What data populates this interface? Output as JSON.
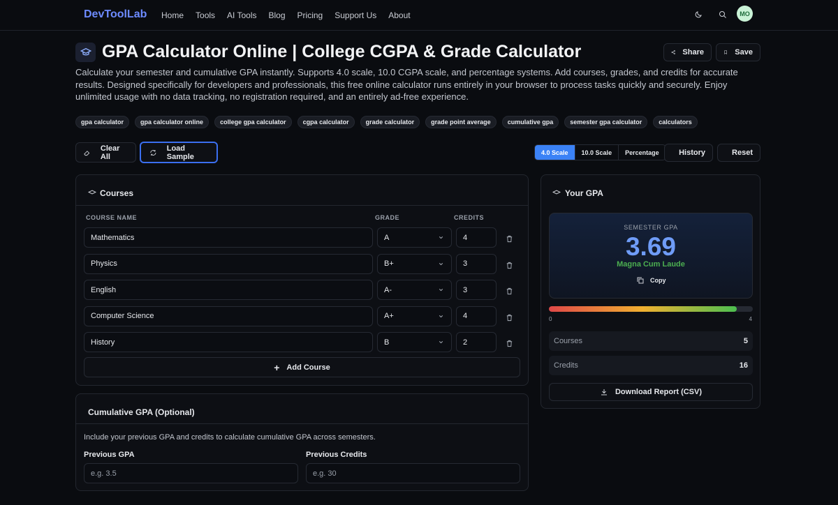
{
  "nav": {
    "brand": "DevToolLab",
    "links": [
      "Home",
      "Tools",
      "AI Tools",
      "Blog",
      "Pricing",
      "Support Us",
      "About"
    ],
    "avatar": "MO"
  },
  "header": {
    "title": "GPA Calculator Online | College CGPA & Grade Calculator",
    "description": "Calculate your semester and cumulative GPA instantly. Supports 4.0 scale, 10.0 CGPA scale, and percentage systems. Add courses, grades, and credits for accurate results. Designed specifically for developers and professionals, this free online calculator runs entirely in your browser to process tasks quickly and securely. Enjoy unlimited usage with no data tracking, no registration required, and an entirely ad-free experience.",
    "actions": [
      "Share",
      "Save"
    ]
  },
  "tags": [
    "gpa calculator",
    "gpa calculator online",
    "college gpa calculator",
    "cgpa calculator",
    "grade calculator",
    "grade point average",
    "cumulative gpa",
    "semester gpa calculator",
    "calculators"
  ],
  "toolbar": {
    "left": [
      "Clear All",
      "Load Sample"
    ],
    "scales": [
      "4.0 Scale",
      "10.0 Scale",
      "Percentage"
    ],
    "right": [
      "History",
      "Reset"
    ]
  },
  "courses": {
    "title": "Courses",
    "columns": [
      "COURSE NAME",
      "GRADE",
      "CREDITS"
    ],
    "rows": [
      {
        "name": "Mathematics",
        "grade": "A",
        "credits": 4
      },
      {
        "name": "Physics",
        "grade": "B+",
        "credits": 3
      },
      {
        "name": "English",
        "grade": "A-",
        "credits": 3
      },
      {
        "name": "Computer Science",
        "grade": "A+",
        "credits": 4
      },
      {
        "name": "History",
        "grade": "B",
        "credits": 2
      }
    ],
    "add": "Add Course"
  },
  "cumulative": {
    "title": "Cumulative GPA (Optional)",
    "description": "Include your previous GPA and credits to calculate cumulative GPA across semesters.",
    "fields": [
      {
        "label": "Previous GPA",
        "placeholder": "e.g. 3.5"
      },
      {
        "label": "Previous Credits",
        "placeholder": "e.g. 30"
      }
    ]
  },
  "result": {
    "title": "Your GPA",
    "label": "SEMESTER GPA",
    "gpa": 3.69,
    "honor": "Magna Cum Laude",
    "copy": "Copy",
    "scale_min": 0,
    "scale_max": 4,
    "stats": [
      {
        "label": "Courses",
        "value": 5
      },
      {
        "label": "Credits",
        "value": 16
      }
    ],
    "download": "Download Report (CSV)"
  }
}
